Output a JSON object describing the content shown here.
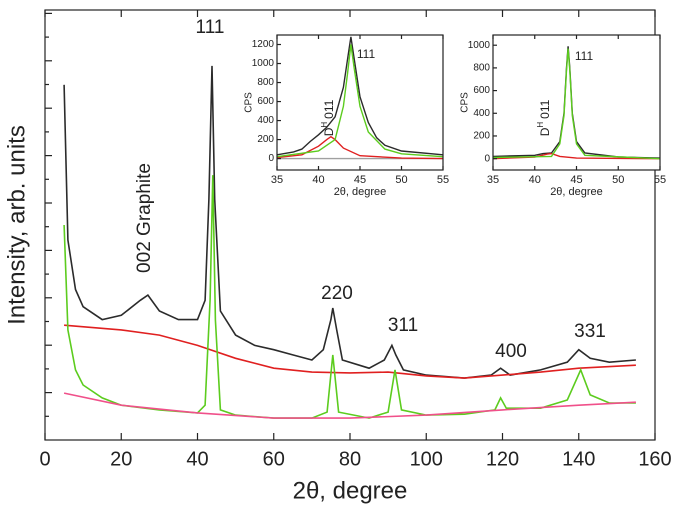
{
  "chart_data": [
    {
      "type": "line",
      "x_label": "2θ, degree",
      "y_label": "Intensity, arb. units",
      "xlim": [
        0,
        160
      ],
      "xticks": [
        0,
        20,
        40,
        60,
        80,
        100,
        120,
        140,
        160
      ],
      "ylim": [
        0,
        100
      ],
      "annotations": [
        "111",
        "002 Graphite",
        "220",
        "311",
        "400",
        "331"
      ],
      "series": [
        {
          "color": "#2b2b2b",
          "x": [
            5,
            6,
            8,
            10,
            15,
            20,
            25,
            27,
            30,
            35,
            40,
            42,
            43,
            43.8,
            44.5,
            46,
            50,
            55,
            60,
            65,
            70,
            73,
            75,
            75.5,
            76.5,
            78,
            85,
            89,
            91,
            92,
            94,
            100,
            110,
            117,
            119.5,
            122,
            130,
            137,
            140,
            143,
            148,
            155
          ],
          "values": [
            82.6,
            46.5,
            35,
            31,
            28,
            29,
            32.5,
            33.7,
            30,
            28,
            28,
            32.5,
            56,
            87,
            56,
            30,
            24.4,
            22,
            21,
            19.8,
            18.6,
            21,
            28,
            30.7,
            25.6,
            18.6,
            16.7,
            18.6,
            22,
            19.8,
            16.3,
            15.1,
            14.4,
            15.1,
            16.7,
            15.1,
            16.3,
            18.1,
            21,
            19,
            18.1,
            18.6
          ]
        },
        {
          "color": "#e02020",
          "x": [
            5,
            20,
            30,
            40,
            50,
            60,
            70,
            80,
            90,
            100,
            110,
            120,
            130,
            140,
            155
          ],
          "values": [
            26.7,
            25.6,
            24.4,
            22,
            19,
            16.7,
            15.8,
            15.6,
            15.8,
            14.9,
            14.4,
            15.1,
            15.8,
            16.7,
            17.4
          ]
        },
        {
          "color": "#5ccc1e",
          "x": [
            5,
            6,
            8,
            10,
            15,
            20,
            30,
            40,
            42,
            43.3,
            44,
            44.7,
            46,
            50,
            60,
            70,
            74,
            75.5,
            77,
            85,
            90,
            91.8,
            93.5,
            100,
            110,
            118,
            119.5,
            121,
            130,
            137,
            140.5,
            143,
            148,
            155
          ],
          "values": [
            50,
            25.6,
            16.3,
            12.8,
            9.8,
            8.1,
            7,
            6.3,
            8.1,
            32.6,
            61.6,
            27.9,
            7,
            5.8,
            5.1,
            5.1,
            6.5,
            19.8,
            6.5,
            5.1,
            6.5,
            16.3,
            7,
            5.8,
            6,
            7,
            9.8,
            7.4,
            7.4,
            9.3,
            16.3,
            10.5,
            8.6,
            8.6
          ]
        },
        {
          "color": "#f0508a",
          "x": [
            5,
            20,
            40,
            60,
            80,
            100,
            120,
            140,
            155
          ],
          "values": [
            10.9,
            8.1,
            6.3,
            5.1,
            5.1,
            5.8,
            7,
            8.1,
            8.8
          ]
        }
      ]
    },
    {
      "type": "line",
      "x_label": "2θ, degree",
      "y_label": "CPS",
      "xlim": [
        35,
        55
      ],
      "xticks": [
        35,
        40,
        45,
        50,
        55
      ],
      "ylim": [
        -120,
        1300
      ],
      "yticks": [
        0,
        200,
        400,
        600,
        800,
        1000,
        1200
      ],
      "annotations": [
        "111"
      ],
      "dh_label": {
        "main": "D",
        "sup": "H",
        "suffix": "011"
      },
      "series": [
        {
          "color": "#a0a0a0",
          "x": [
            35,
            55
          ],
          "values": [
            0,
            0
          ]
        },
        {
          "color": "#2b2b2b",
          "x": [
            35,
            37,
            38,
            39,
            40,
            41,
            42,
            43,
            43.5,
            43.9,
            44.3,
            45,
            46,
            47,
            48,
            50,
            55
          ],
          "values": [
            40,
            70,
            100,
            180,
            250,
            330,
            440,
            750,
            1050,
            1280,
            1050,
            650,
            380,
            220,
            140,
            80,
            40
          ]
        },
        {
          "color": "#e02020",
          "x": [
            35,
            38,
            40,
            41,
            41.5,
            42,
            43,
            45,
            50,
            55
          ],
          "values": [
            10,
            40,
            130,
            200,
            230,
            200,
            110,
            30,
            5,
            0
          ]
        },
        {
          "color": "#5ccc1e",
          "x": [
            35,
            40,
            42,
            43,
            43.5,
            43.9,
            44.3,
            45,
            46,
            48,
            50,
            55
          ],
          "values": [
            20,
            80,
            200,
            550,
            900,
            1200,
            950,
            550,
            280,
            100,
            50,
            20
          ]
        }
      ]
    },
    {
      "type": "line",
      "x_label": "2θ, degree",
      "y_label": "CPS",
      "xlim": [
        35,
        55
      ],
      "xticks": [
        35,
        40,
        45,
        50,
        55
      ],
      "ylim": [
        -100,
        1090
      ],
      "yticks": [
        0,
        200,
        400,
        600,
        800,
        1000
      ],
      "annotations": [
        "111"
      ],
      "dh_label": {
        "main": "D",
        "sup": "H",
        "suffix": "011"
      },
      "series": [
        {
          "color": "#2b2b2b",
          "x": [
            35,
            40,
            41,
            42,
            43,
            43.5,
            43.8,
            44,
            44.2,
            44.5,
            45,
            46,
            50,
            55
          ],
          "values": [
            20,
            30,
            45,
            50,
            150,
            400,
            800,
            990,
            800,
            400,
            150,
            50,
            15,
            5
          ]
        },
        {
          "color": "#e02020",
          "x": [
            35,
            40,
            41.5,
            42,
            43,
            45,
            55
          ],
          "values": [
            0,
            15,
            40,
            45,
            20,
            5,
            0
          ]
        },
        {
          "color": "#5ccc1e",
          "x": [
            35,
            42,
            43,
            43.5,
            43.8,
            44,
            44.2,
            44.5,
            45,
            46,
            55
          ],
          "values": [
            10,
            20,
            130,
            380,
            780,
            970,
            780,
            380,
            130,
            30,
            0
          ]
        }
      ]
    }
  ]
}
